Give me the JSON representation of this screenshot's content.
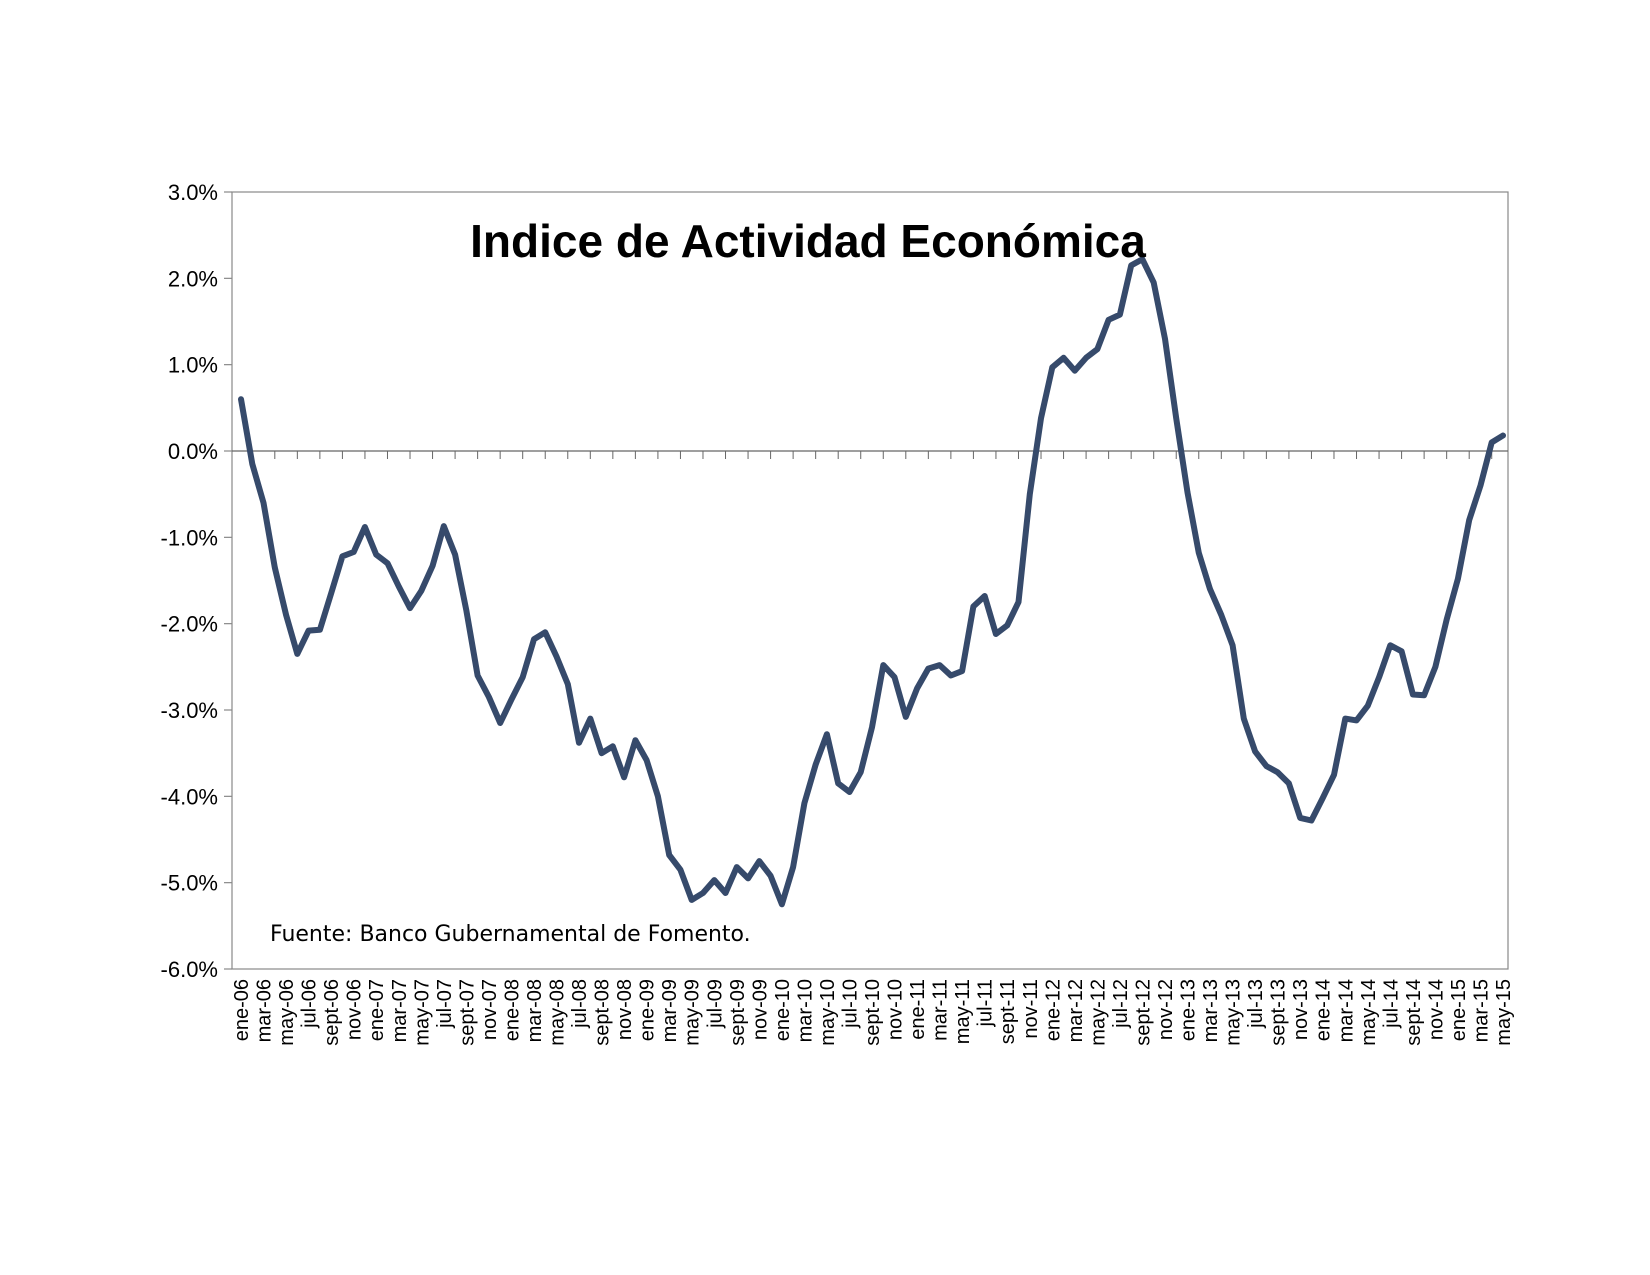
{
  "chart_data": {
    "type": "line",
    "title": "Indice de Actividad Económica",
    "source_note": "Fuente: Banco Gubernamental de Fomento.",
    "xlabel": "",
    "ylabel": "",
    "ylim": [
      -6.0,
      3.0
    ],
    "y_ticks": [
      "3.0%",
      "2.0%",
      "1.0%",
      "0.0%",
      "-1.0%",
      "-2.0%",
      "-3.0%",
      "-4.0%",
      "-5.0%",
      "-6.0%"
    ],
    "y_tick_values": [
      3.0,
      2.0,
      1.0,
      0.0,
      -1.0,
      -2.0,
      -3.0,
      -4.0,
      -5.0,
      -6.0
    ],
    "grid": false,
    "legend": "none",
    "line_color": "#364a6b",
    "x_tick_labels": [
      "ene-06",
      "mar-06",
      "may-06",
      "jul-06",
      "sept-06",
      "nov-06",
      "ene-07",
      "mar-07",
      "may-07",
      "jul-07",
      "sept-07",
      "nov-07",
      "ene-08",
      "mar-08",
      "may-08",
      "jul-08",
      "sept-08",
      "nov-08",
      "ene-09",
      "mar-09",
      "may-09",
      "jul-09",
      "sept-09",
      "nov-09",
      "ene-10",
      "mar-10",
      "may-10",
      "jul-10",
      "sept-10",
      "nov-10",
      "ene-11",
      "mar-11",
      "may-11",
      "jul-11",
      "sept-11",
      "nov-11",
      "ene-12",
      "mar-12",
      "may-12",
      "jul-12",
      "sept-12",
      "nov-12",
      "ene-13",
      "mar-13",
      "may-13",
      "jul-13",
      "sept-13",
      "nov-13",
      "ene-14",
      "mar-14",
      "may-14",
      "jul-14",
      "sept-14",
      "nov-14",
      "ene-15",
      "mar-15",
      "may-15"
    ],
    "x_start": "ene-06",
    "series": [
      {
        "values": [
          0.6,
          -0.15,
          -0.6,
          -1.35,
          -1.9,
          -2.35,
          -2.08,
          -2.07,
          -1.65,
          -1.22,
          -1.17,
          -0.88,
          -1.2,
          -1.3,
          -1.57,
          -1.82,
          -1.62,
          -1.33,
          -0.87,
          -1.2,
          -1.85,
          -2.6,
          -2.85,
          -3.15,
          -2.88,
          -2.62,
          -2.18,
          -2.1,
          -2.38,
          -2.7,
          -3.38,
          -3.1,
          -3.5,
          -3.42,
          -3.78,
          -3.35,
          -3.58,
          -4.0,
          -4.68,
          -4.85,
          -5.2,
          -5.12,
          -4.97,
          -5.12,
          -4.82,
          -4.95,
          -4.75,
          -4.92,
          -5.25,
          -4.82,
          -4.08,
          -3.63,
          -3.28,
          -3.85,
          -3.95,
          -3.72,
          -3.2,
          -2.48,
          -2.62,
          -3.08,
          -2.75,
          -2.52,
          -2.48,
          -2.6,
          -2.55,
          -1.8,
          -1.68,
          -2.12,
          -2.02,
          -1.75,
          -0.5,
          0.38,
          0.97,
          1.08,
          0.93,
          1.08,
          1.18,
          1.52,
          1.58,
          2.15,
          2.22,
          1.95,
          1.3,
          0.38,
          -0.48,
          -1.18,
          -1.6,
          -1.9,
          -2.25,
          -3.1,
          -3.48,
          -3.65,
          -3.72,
          -3.85,
          -4.25,
          -4.28,
          -4.02,
          -3.75,
          -3.1,
          -3.12,
          -2.95,
          -2.62,
          -2.25,
          -2.32,
          -2.82,
          -2.83,
          -2.5,
          -1.95,
          -1.48,
          -0.8,
          -0.4,
          0.1,
          0.18
        ]
      }
    ]
  }
}
